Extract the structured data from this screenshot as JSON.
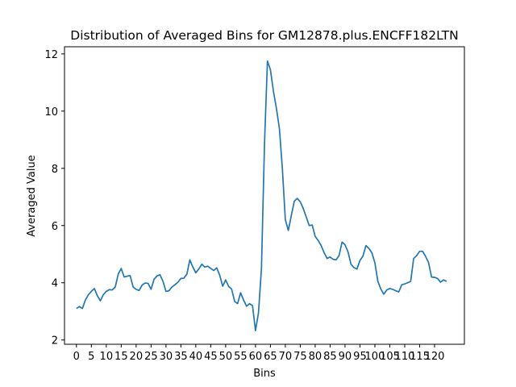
{
  "chart_data": {
    "type": "line",
    "title": "Distribution of Averaged Bins for GM12878.plus.ENCFF182LTN",
    "xlabel": "Bins",
    "ylabel": "Averaged Value",
    "xlim": [
      -4,
      130
    ],
    "ylim": [
      1.85,
      12.25
    ],
    "xticks": [
      0,
      5,
      10,
      15,
      20,
      25,
      30,
      35,
      40,
      45,
      50,
      55,
      60,
      65,
      70,
      75,
      80,
      85,
      90,
      95,
      100,
      105,
      110,
      115,
      120
    ],
    "yticks": [
      2,
      4,
      6,
      8,
      10,
      12
    ],
    "grid": false,
    "color": "#1f77b4",
    "series": [
      {
        "values": [
          3.1,
          3.17,
          3.1,
          3.4,
          3.58,
          3.7,
          3.8,
          3.55,
          3.37,
          3.58,
          3.7,
          3.76,
          3.75,
          3.85,
          4.3,
          4.5,
          4.2,
          4.23,
          4.25,
          3.85,
          3.77,
          3.73,
          3.92,
          3.99,
          3.98,
          3.77,
          4.12,
          4.24,
          4.28,
          4.05,
          3.7,
          3.72,
          3.85,
          3.93,
          4.02,
          4.15,
          4.16,
          4.3,
          4.8,
          4.55,
          4.35,
          4.48,
          4.65,
          4.55,
          4.58,
          4.5,
          4.43,
          4.52,
          4.27,
          3.88,
          4.1,
          3.87,
          3.78,
          3.35,
          3.27,
          3.65,
          3.4,
          3.18,
          3.27,
          3.2,
          2.33,
          2.95,
          4.5,
          8.8,
          11.75,
          11.45,
          10.7,
          10.1,
          9.4,
          8.0,
          6.2,
          5.83,
          6.35,
          6.85,
          6.95,
          6.83,
          6.6,
          6.3,
          6.0,
          6.02,
          5.62,
          5.48,
          5.3,
          5.05,
          4.85,
          4.9,
          4.82,
          4.8,
          4.95,
          5.42,
          5.33,
          5.08,
          4.65,
          4.53,
          4.48,
          4.78,
          4.93,
          5.3,
          5.2,
          5.05,
          4.7,
          4.05,
          3.78,
          3.6,
          3.75,
          3.8,
          3.77,
          3.72,
          3.68,
          3.93,
          3.96,
          4.0,
          4.05,
          4.85,
          4.95,
          5.1,
          5.1,
          4.92,
          4.7,
          4.2,
          4.19,
          4.15,
          4.02,
          4.1,
          4.05
        ]
      }
    ]
  }
}
